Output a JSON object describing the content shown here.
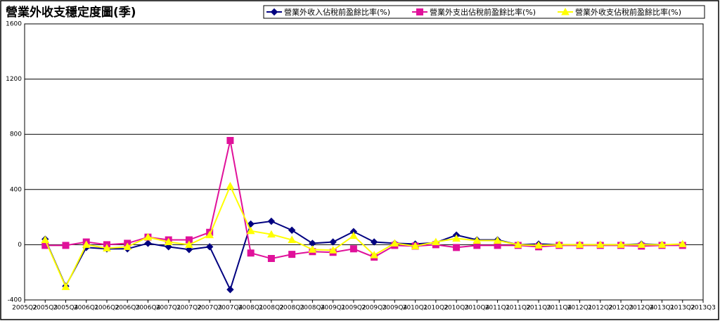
{
  "chart_data": {
    "type": "line",
    "title": "營業外收支穩定度圖(季)",
    "categories": [
      "2005Q2",
      "2005Q3",
      "2005Q4",
      "2006Q1",
      "2006Q2",
      "2006Q3",
      "2006Q4",
      "2007Q1",
      "2007Q2",
      "2007Q3",
      "2007Q4",
      "2008Q1",
      "2008Q2",
      "2008Q3",
      "2008Q4",
      "2009Q1",
      "2009Q2",
      "2009Q3",
      "2009Q4",
      "2010Q1",
      "2010Q2",
      "2010Q3",
      "2010Q4",
      "2011Q1",
      "2011Q2",
      "2011Q3",
      "2011Q4",
      "2012Q1",
      "2012Q2",
      "2012Q3",
      "2012Q4",
      "2013Q1",
      "2013Q2",
      "2013Q3"
    ],
    "series": [
      {
        "name": "營業外收入佔稅前盈餘比率(%)",
        "color": "#000080",
        "marker": "diamond",
        "values": [
          null,
          40,
          -300,
          -20,
          -30,
          -30,
          10,
          -15,
          -35,
          -15,
          -325,
          150,
          170,
          105,
          10,
          20,
          95,
          20,
          10,
          5,
          15,
          70,
          35,
          35,
          0,
          5,
          0,
          0,
          0,
          0,
          5,
          0,
          0,
          null
        ]
      },
      {
        "name": "營業外支出佔稅前盈餘比率(%)",
        "color": "#e0119a",
        "marker": "square",
        "values": [
          null,
          -5,
          -5,
          20,
          0,
          10,
          55,
          35,
          35,
          90,
          755,
          -60,
          -100,
          -70,
          -50,
          -55,
          -30,
          -90,
          -5,
          -10,
          0,
          -20,
          -5,
          -5,
          -5,
          -15,
          -5,
          -5,
          -5,
          -5,
          -10,
          -5,
          -5,
          null
        ]
      },
      {
        "name": "營業外收支佔稅前盈餘比率(%)",
        "color": "#ffff00",
        "marker": "triangle",
        "values": [
          null,
          35,
          -305,
          0,
          -25,
          -15,
          55,
          20,
          0,
          70,
          425,
          100,
          75,
          35,
          -35,
          -40,
          65,
          -75,
          10,
          -10,
          20,
          45,
          30,
          30,
          0,
          -5,
          0,
          0,
          0,
          0,
          0,
          0,
          5,
          null
        ]
      }
    ],
    "ylim": [
      -400,
      1600
    ],
    "yticks": [
      -400,
      0,
      400,
      800,
      1200,
      1600
    ],
    "grid": true,
    "legend": "top-right"
  }
}
